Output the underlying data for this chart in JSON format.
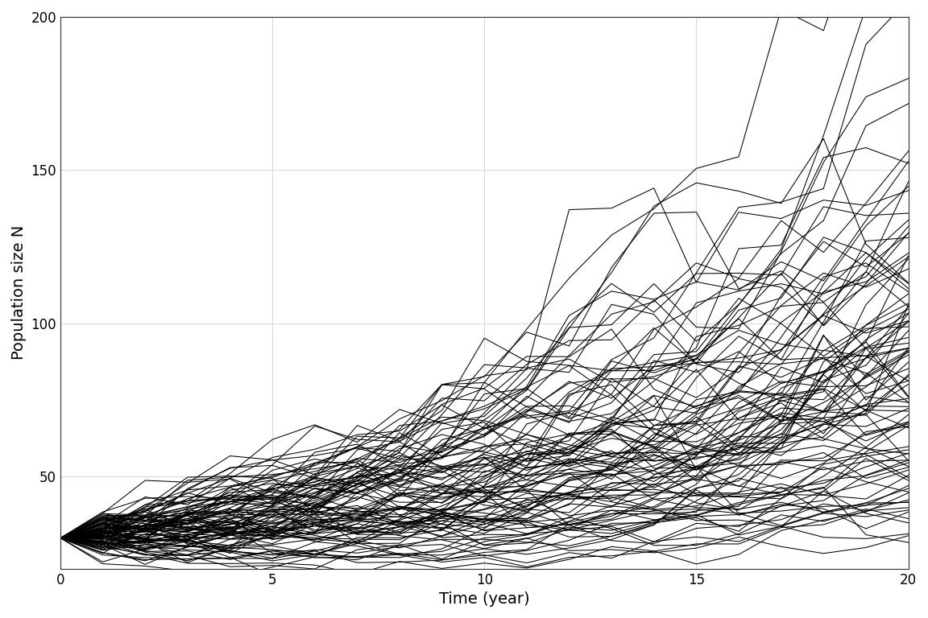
{
  "n_realizations": 100,
  "n_years": 20,
  "N0": 30,
  "lambda_mean": 1.06,
  "lambda_sd": 0.12,
  "seed": 123,
  "line_color": "#000000",
  "line_width": 0.75,
  "line_alpha": 1.0,
  "background_color": "#ffffff",
  "grid_color": "#d9d9d9",
  "xlabel": "Time (year)",
  "ylabel": "Population size N",
  "xlim": [
    0,
    20
  ],
  "ylim": [
    20,
    200
  ],
  "xticks": [
    0,
    5,
    10,
    15,
    20
  ],
  "yticks": [
    50,
    100,
    150,
    200
  ],
  "xlabel_fontsize": 14,
  "ylabel_fontsize": 14,
  "tick_fontsize": 12
}
